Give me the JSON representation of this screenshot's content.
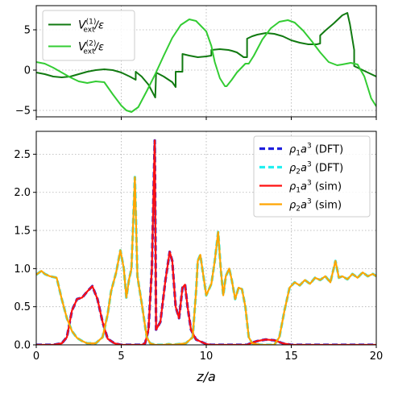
{
  "chart_data": [
    {
      "type": "line",
      "panel": "top",
      "xlim": [
        0,
        20
      ],
      "ylim": [
        -5.8,
        8
      ],
      "x_ticks": [
        0,
        5,
        10,
        15,
        20
      ],
      "y_ticks": [
        -5,
        0,
        5
      ],
      "y_tick_labels": [
        "−5",
        "0",
        "5"
      ],
      "grid": true,
      "legend_position": "upper-left",
      "series": [
        {
          "name": "V_ext^(1)/ε",
          "legend_main": "V",
          "legend_sub": "ext",
          "legend_sup": "(1)",
          "legend_tail": "/ε",
          "color": "#117a11",
          "points": [
            [
              0,
              -0.3
            ],
            [
              0.5,
              -0.5
            ],
            [
              1,
              -0.8
            ],
            [
              1.5,
              -0.9
            ],
            [
              2,
              -0.8
            ],
            [
              2.5,
              -0.5
            ],
            [
              3,
              -0.2
            ],
            [
              3.5,
              0.0
            ],
            [
              4,
              0.1
            ],
            [
              4.5,
              0.0
            ],
            [
              5,
              -0.3
            ],
            [
              5.5,
              -0.8
            ],
            [
              5.85,
              -1.2
            ],
            [
              5.85,
              -0.2
            ],
            [
              6.2,
              -0.8
            ],
            [
              6.6,
              -1.8
            ],
            [
              7,
              -3.4
            ],
            [
              7.05,
              -0.3
            ],
            [
              7.5,
              -0.8
            ],
            [
              8,
              -1.5
            ],
            [
              8.2,
              -2.1
            ],
            [
              8.2,
              -0.2
            ],
            [
              8.6,
              -0.2
            ],
            [
              8.6,
              2.0
            ],
            [
              9,
              1.8
            ],
            [
              9.5,
              1.6
            ],
            [
              10,
              1.7
            ],
            [
              10.3,
              1.8
            ],
            [
              10.3,
              2.5
            ],
            [
              10.8,
              2.6
            ],
            [
              11.3,
              2.5
            ],
            [
              11.5,
              2.4
            ],
            [
              11.8,
              2.2
            ],
            [
              12.2,
              1.6
            ],
            [
              12.4,
              1.6
            ],
            [
              12.4,
              3.9
            ],
            [
              12.7,
              4.2
            ],
            [
              13,
              4.4
            ],
            [
              13.5,
              4.6
            ],
            [
              14,
              4.5
            ],
            [
              14.5,
              4.2
            ],
            [
              15,
              3.7
            ],
            [
              15.5,
              3.4
            ],
            [
              16,
              3.2
            ],
            [
              16.5,
              3.2
            ],
            [
              16.7,
              3.3
            ],
            [
              16.7,
              4.3
            ],
            [
              17,
              4.9
            ],
            [
              17.5,
              5.8
            ],
            [
              18,
              6.8
            ],
            [
              18.3,
              7.1
            ],
            [
              18.45,
              5.7
            ],
            [
              18.7,
              2.5
            ],
            [
              18.7,
              0.5
            ],
            [
              19,
              0.2
            ],
            [
              19.5,
              -0.3
            ],
            [
              20,
              -0.8
            ]
          ]
        },
        {
          "name": "V_ext^(2)/ε",
          "legend_main": "V",
          "legend_sub": "ext",
          "legend_sup": "(2)",
          "legend_tail": "/ε",
          "color": "#33cc33",
          "points": [
            [
              0,
              1.0
            ],
            [
              0.5,
              0.8
            ],
            [
              1,
              0.3
            ],
            [
              1.5,
              -0.3
            ],
            [
              2,
              -0.9
            ],
            [
              2.5,
              -1.4
            ],
            [
              3,
              -1.6
            ],
            [
              3.5,
              -1.4
            ],
            [
              4,
              -1.5
            ],
            [
              4.5,
              -3.0
            ],
            [
              5,
              -4.4
            ],
            [
              5.3,
              -5.0
            ],
            [
              5.6,
              -5.2
            ],
            [
              6,
              -4.6
            ],
            [
              6.5,
              -2.6
            ],
            [
              7,
              -0.5
            ],
            [
              7.5,
              1.8
            ],
            [
              8,
              4.0
            ],
            [
              8.5,
              5.6
            ],
            [
              9,
              6.3
            ],
            [
              9.4,
              6.1
            ],
            [
              10,
              4.8
            ],
            [
              10.3,
              3.0
            ],
            [
              10.5,
              1.0
            ],
            [
              10.8,
              -1.0
            ],
            [
              11.1,
              -2.0
            ],
            [
              11.2,
              -2.0
            ],
            [
              11.5,
              -1.2
            ],
            [
              11.8,
              -0.3
            ],
            [
              12.3,
              0.8
            ],
            [
              12.5,
              0.8
            ],
            [
              12.8,
              1.8
            ],
            [
              13.3,
              3.8
            ],
            [
              13.8,
              5.2
            ],
            [
              14.3,
              6.0
            ],
            [
              14.8,
              6.2
            ],
            [
              15.2,
              5.9
            ],
            [
              15.7,
              4.9
            ],
            [
              16.2,
              3.6
            ],
            [
              16.7,
              2.2
            ],
            [
              17.2,
              1.0
            ],
            [
              17.7,
              0.6
            ],
            [
              18,
              0.7
            ],
            [
              18.5,
              0.9
            ],
            [
              18.9,
              0.7
            ],
            [
              19.3,
              -0.8
            ],
            [
              19.7,
              -3.5
            ],
            [
              20,
              -4.5
            ]
          ]
        }
      ]
    },
    {
      "type": "line",
      "panel": "bottom",
      "xlabel": "z/a",
      "xlim": [
        0,
        20
      ],
      "ylim": [
        0,
        2.8
      ],
      "x_ticks": [
        0,
        5,
        10,
        15,
        20
      ],
      "y_ticks": [
        0.0,
        0.5,
        1.0,
        1.5,
        2.0,
        2.5
      ],
      "y_tick_labels": [
        "0.0",
        "0.5",
        "1.0",
        "1.5",
        "2.0",
        "2.5"
      ],
      "grid": true,
      "legend_position": "upper-right",
      "series": [
        {
          "name": "ρ1a3 (DFT)",
          "legend_main": "ρ",
          "legend_sub": "1",
          "legend_mid": "a",
          "legend_sup": "3",
          "legend_tail": " (DFT)",
          "color": "#1f1fdd",
          "dash": true,
          "width": 3.2,
          "data_ref": "rho1"
        },
        {
          "name": "ρ2a3 (DFT)",
          "legend_main": "ρ",
          "legend_sub": "2",
          "legend_mid": "a",
          "legend_sup": "3",
          "legend_tail": " (DFT)",
          "color": "#22f0f0",
          "dash": true,
          "width": 3.2,
          "data_ref": "rho2"
        },
        {
          "name": "ρ1a3 (sim)",
          "legend_main": "ρ",
          "legend_sub": "1",
          "legend_mid": "a",
          "legend_sup": "3",
          "legend_tail": " (sim)",
          "color": "#ff1010",
          "dash": false,
          "width": 2.2,
          "data_ref": "rho1"
        },
        {
          "name": "ρ2a3 (sim)",
          "legend_main": "ρ",
          "legend_sub": "2",
          "legend_mid": "a",
          "legend_sup": "3",
          "legend_tail": " (sim)",
          "color": "#ffa500",
          "dash": false,
          "width": 2.2,
          "data_ref": "rho2"
        }
      ],
      "data": {
        "rho1": [
          [
            0,
            0
          ],
          [
            1,
            0
          ],
          [
            1.5,
            0.02
          ],
          [
            1.8,
            0.1
          ],
          [
            2.1,
            0.45
          ],
          [
            2.4,
            0.6
          ],
          [
            2.7,
            0.62
          ],
          [
            3.0,
            0.7
          ],
          [
            3.3,
            0.77
          ],
          [
            3.6,
            0.6
          ],
          [
            3.9,
            0.3
          ],
          [
            4.2,
            0.08
          ],
          [
            4.6,
            0.02
          ],
          [
            5,
            0
          ],
          [
            6.2,
            0
          ],
          [
            6.4,
            0.02
          ],
          [
            6.6,
            0.2
          ],
          [
            6.8,
            1.0
          ],
          [
            6.9,
            2.0
          ],
          [
            6.97,
            2.68
          ],
          [
            7.05,
            0.2
          ],
          [
            7.3,
            0.3
          ],
          [
            7.6,
            0.85
          ],
          [
            7.85,
            1.22
          ],
          [
            8.0,
            1.1
          ],
          [
            8.2,
            0.5
          ],
          [
            8.4,
            0.35
          ],
          [
            8.6,
            0.75
          ],
          [
            8.75,
            0.79
          ],
          [
            8.9,
            0.5
          ],
          [
            9.1,
            0.2
          ],
          [
            9.4,
            0.07
          ],
          [
            9.7,
            0.04
          ],
          [
            10,
            0.01
          ],
          [
            10.3,
            0
          ],
          [
            12.4,
            0
          ],
          [
            12.6,
            0.02
          ],
          [
            13,
            0.05
          ],
          [
            13.5,
            0.07
          ],
          [
            14,
            0.06
          ],
          [
            14.5,
            0.02
          ],
          [
            15,
            0
          ],
          [
            20,
            0
          ]
        ],
        "rho2": [
          [
            0,
            0.92
          ],
          [
            0.3,
            0.97
          ],
          [
            0.5,
            0.93
          ],
          [
            0.8,
            0.9
          ],
          [
            1.2,
            0.88
          ],
          [
            1.5,
            0.6
          ],
          [
            1.8,
            0.35
          ],
          [
            2.1,
            0.18
          ],
          [
            2.4,
            0.09
          ],
          [
            2.7,
            0.05
          ],
          [
            3,
            0.02
          ],
          [
            3.5,
            0.02
          ],
          [
            3.9,
            0.1
          ],
          [
            4.2,
            0.4
          ],
          [
            4.4,
            0.7
          ],
          [
            4.7,
            0.95
          ],
          [
            4.95,
            1.24
          ],
          [
            5.15,
            1.0
          ],
          [
            5.3,
            0.62
          ],
          [
            5.45,
            0.85
          ],
          [
            5.6,
            1.0
          ],
          [
            5.8,
            2.2
          ],
          [
            5.95,
            0.9
          ],
          [
            6.2,
            0.55
          ],
          [
            6.5,
            0.1
          ],
          [
            6.7,
            0.02
          ],
          [
            7.0,
            0
          ],
          [
            7.5,
            0
          ],
          [
            7.8,
            0.01
          ],
          [
            8.0,
            0
          ],
          [
            8.8,
            0.02
          ],
          [
            9.2,
            0.1
          ],
          [
            9.4,
            0.7
          ],
          [
            9.5,
            1.1
          ],
          [
            9.65,
            1.18
          ],
          [
            9.8,
            0.95
          ],
          [
            10.0,
            0.65
          ],
          [
            10.3,
            0.8
          ],
          [
            10.5,
            1.1
          ],
          [
            10.7,
            1.48
          ],
          [
            10.85,
            1.0
          ],
          [
            11.0,
            0.65
          ],
          [
            11.15,
            0.9
          ],
          [
            11.35,
            1.0
          ],
          [
            11.5,
            0.85
          ],
          [
            11.7,
            0.6
          ],
          [
            11.9,
            0.75
          ],
          [
            12.1,
            0.73
          ],
          [
            12.3,
            0.5
          ],
          [
            12.5,
            0.1
          ],
          [
            12.7,
            0.02
          ],
          [
            13.2,
            0
          ],
          [
            14,
            0
          ],
          [
            14.3,
            0.1
          ],
          [
            14.6,
            0.45
          ],
          [
            14.9,
            0.75
          ],
          [
            15.2,
            0.82
          ],
          [
            15.5,
            0.78
          ],
          [
            15.8,
            0.85
          ],
          [
            16.1,
            0.8
          ],
          [
            16.4,
            0.88
          ],
          [
            16.7,
            0.85
          ],
          [
            17.0,
            0.9
          ],
          [
            17.3,
            0.82
          ],
          [
            17.6,
            1.1
          ],
          [
            17.8,
            0.88
          ],
          [
            18.0,
            0.9
          ],
          [
            18.3,
            0.86
          ],
          [
            18.6,
            0.93
          ],
          [
            18.9,
            0.88
          ],
          [
            19.2,
            0.95
          ],
          [
            19.5,
            0.9
          ],
          [
            19.8,
            0.93
          ],
          [
            20,
            0.9
          ]
        ]
      }
    }
  ]
}
